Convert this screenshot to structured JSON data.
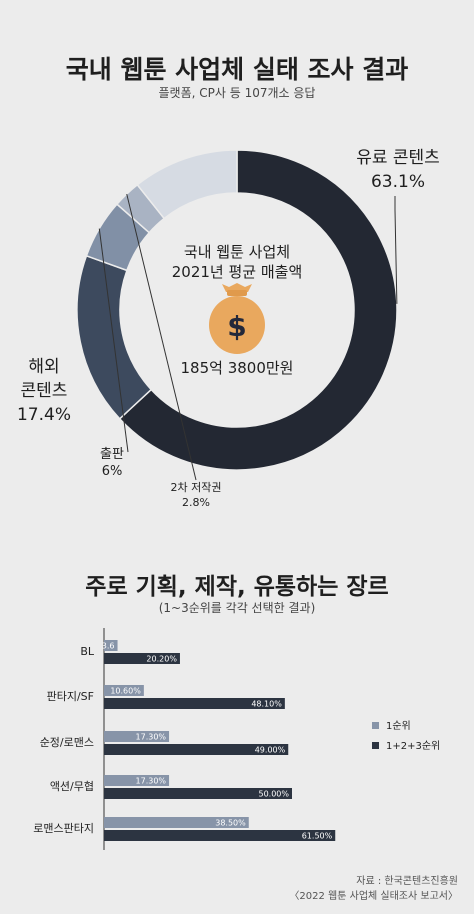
{
  "section1": {
    "title": "국내 웹툰 사업체 실태 조사 결과",
    "subtitle": "플랫폼, CP사 등 107개소 응답"
  },
  "center": {
    "line1": "국내 웹툰 사업체",
    "line2": "2021년 평균 매출액",
    "value": "185억 3800만원",
    "icon": "money-bag-icon"
  },
  "section2": {
    "title": "주로 기획, 제작, 유통하는 장르",
    "subtitle": "(1~3순위를 각각 선택한 결과)"
  },
  "source": {
    "line1": "자료 : 한국콘텐츠진흥원",
    "line2": "〈2022 웹툰 사업체 실태조사 보고서〉"
  },
  "chart_data": [
    {
      "type": "pie",
      "categories": [
        "유료 콘텐츠",
        "해외 콘텐츠",
        "출판",
        "2차 저작권",
        ""
      ],
      "values": [
        63.1,
        17.4,
        6,
        2.8,
        10.7
      ],
      "labels": [
        "유료 콘텐츠 63.1%",
        "해외 콘텐츠 17.4%",
        "출판 6%",
        "2차 저작권 2.8%"
      ],
      "colors": [
        "#232833",
        "#3d4a5e",
        "#8190a6",
        "#a9b3c3",
        "#d6dbe3"
      ]
    },
    {
      "type": "bar",
      "orientation": "horizontal",
      "categories": [
        "BL",
        "판타지/SF",
        "순정/로맨스",
        "액션/무협",
        "로맨스판타지"
      ],
      "series": [
        {
          "name": "1순위",
          "values": [
            3.6,
            10.6,
            17.3,
            17.3,
            38.5
          ],
          "labels": [
            "3.6",
            "10.60%",
            "17.30%",
            "17.30%",
            "38.50%"
          ],
          "color": "#8794a8"
        },
        {
          "name": "1+2+3순위",
          "values": [
            20.2,
            48.1,
            49.0,
            50.0,
            61.5
          ],
          "labels": [
            "20.20%",
            "48.10%",
            "49.00%",
            "50.00%",
            "61.50%"
          ],
          "color": "#2c3441"
        }
      ],
      "legend": "right"
    }
  ]
}
